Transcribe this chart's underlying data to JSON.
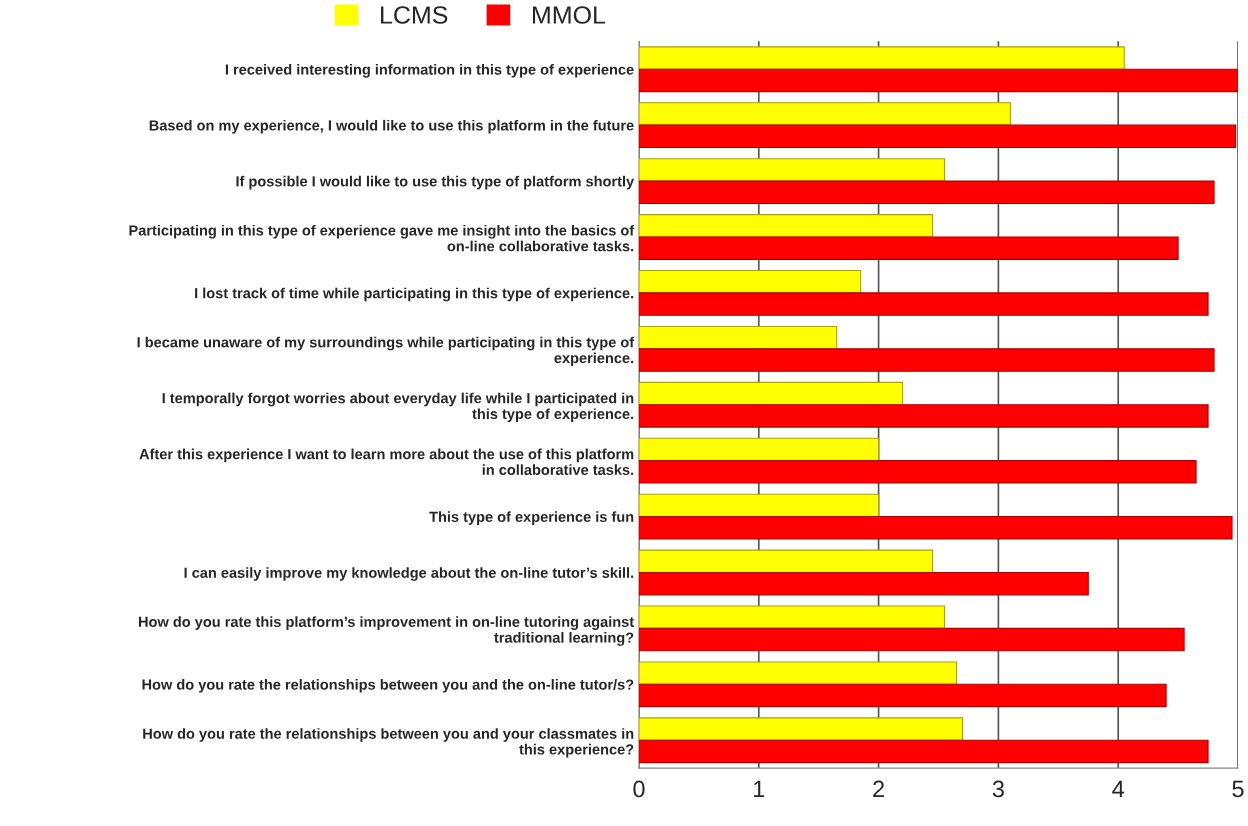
{
  "chart_data": {
    "type": "bar",
    "orientation": "horizontal",
    "categories": [
      "I received interesting information in this type of experience",
      "Based on my experience, I would like to use this platform in the future",
      "If possible I would like to use this type of platform shortly",
      "Participating in this type of experience gave me insight into the basics of\non-line collaborative tasks.",
      "I lost track of time while participating in this type of experience.",
      "I became unaware of my surroundings while participating in this type of\nexperience.",
      "I temporally forgot worries about everyday life while I participated in\nthis type of experience.",
      "After this experience I want to learn more about the use of this platform\nin collaborative tasks.",
      "This type of experience is fun",
      "I can easily improve my knowledge about the on-line tutor’s skill.",
      "How do you rate this platform’s improvement in on-line tutoring against\ntraditional learning?",
      "How do you rate the relationships between you and the on-line tutor/s?",
      "How do you rate the relationships between you and your classmates in\nthis experience?"
    ],
    "series": [
      {
        "name": "LCMS",
        "color": "#ffff00",
        "values": [
          4.05,
          3.1,
          2.55,
          2.45,
          1.85,
          1.65,
          2.2,
          2.0,
          2.0,
          2.45,
          2.55,
          2.65,
          2.7
        ]
      },
      {
        "name": "MMOL",
        "color": "#ff0000",
        "values": [
          5.0,
          4.98,
          4.8,
          4.5,
          4.75,
          4.8,
          4.75,
          4.65,
          4.95,
          3.75,
          4.55,
          4.4,
          4.75
        ]
      }
    ],
    "xlim": [
      0,
      5
    ],
    "xticks": [
      0,
      1,
      2,
      3,
      4,
      5
    ],
    "grid": "x",
    "legend": "top left"
  }
}
